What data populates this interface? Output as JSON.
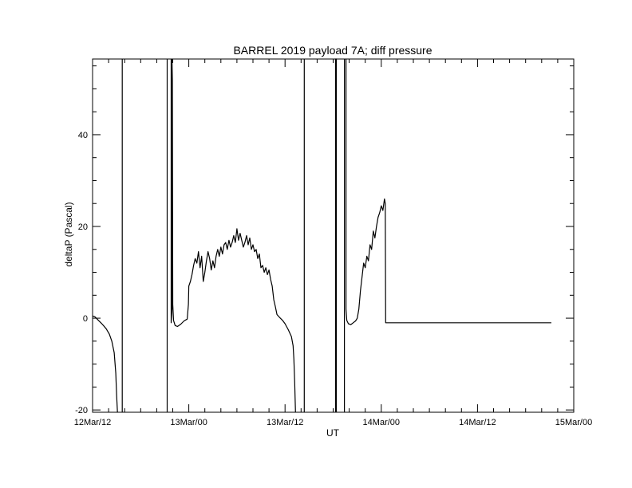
{
  "chart_data": {
    "type": "line",
    "title": "BARREL 2019 payload 7A; diff pressure",
    "xlabel": "UT",
    "ylabel": "deltaP (Pascal)",
    "x_unit": "hours since 12Mar/12 UT",
    "xlim": [
      0,
      60
    ],
    "ylim": [
      -20.5,
      56.5
    ],
    "x_tick_values": [
      0,
      12,
      24,
      36,
      48,
      60
    ],
    "x_tick_labels": [
      "12Mar/12",
      "13Mar/00",
      "13Mar/12",
      "14Mar/00",
      "14Mar/12",
      "15Mar/00"
    ],
    "y_tick_values": [
      -20,
      0,
      20,
      40
    ],
    "y_tick_labels": [
      "-20",
      "0",
      "20",
      "40"
    ],
    "grid": false,
    "line_color": "#000000",
    "series": [
      {
        "name": "",
        "segments": [
          [
            [
              0.0,
              0.5
            ],
            [
              0.3,
              0.3
            ],
            [
              0.7,
              -0.4
            ],
            [
              1.2,
              -1.3
            ],
            [
              1.7,
              -2.3
            ],
            [
              2.1,
              -3.5
            ],
            [
              2.4,
              -5.0
            ],
            [
              2.7,
              -7.5
            ],
            [
              2.9,
              -12.0
            ],
            [
              3.0,
              -17.0
            ],
            [
              3.1,
              -20.5
            ]
          ],
          [
            [
              3.7,
              -20.5
            ],
            [
              3.7,
              56.5
            ]
          ],
          [
            [
              9.3,
              56.5
            ],
            [
              9.3,
              -20.5
            ]
          ],
          [
            [
              9.8,
              56.5
            ],
            [
              9.8,
              -1.0
            ],
            [
              9.9,
              2.0
            ],
            [
              9.9,
              56.5
            ],
            [
              9.95,
              52.0
            ],
            [
              10.0,
              3.0
            ],
            [
              10.1,
              -0.5
            ],
            [
              10.3,
              -1.6
            ],
            [
              10.6,
              -1.8
            ],
            [
              11.0,
              -1.3
            ],
            [
              11.4,
              -0.6
            ],
            [
              11.8,
              -0.2
            ],
            [
              11.95,
              3.0
            ],
            [
              12.0,
              7.0
            ],
            [
              12.2,
              8.0
            ],
            [
              12.4,
              9.5
            ],
            [
              12.6,
              11.5
            ],
            [
              12.8,
              13.0
            ],
            [
              13.0,
              12.0
            ],
            [
              13.2,
              14.5
            ],
            [
              13.4,
              11.0
            ],
            [
              13.6,
              13.5
            ],
            [
              13.8,
              8.0
            ],
            [
              14.0,
              10.0
            ],
            [
              14.2,
              12.5
            ],
            [
              14.4,
              14.5
            ],
            [
              14.6,
              13.0
            ],
            [
              14.8,
              10.5
            ],
            [
              15.0,
              12.5
            ],
            [
              15.2,
              11.0
            ],
            [
              15.4,
              13.5
            ],
            [
              15.6,
              15.0
            ],
            [
              15.8,
              13.5
            ],
            [
              16.0,
              15.5
            ],
            [
              16.2,
              14.0
            ],
            [
              16.4,
              16.0
            ],
            [
              16.6,
              16.5
            ],
            [
              16.8,
              15.0
            ],
            [
              17.0,
              17.0
            ],
            [
              17.2,
              15.5
            ],
            [
              17.4,
              16.5
            ],
            [
              17.6,
              18.0
            ],
            [
              17.8,
              16.5
            ],
            [
              18.0,
              19.5
            ],
            [
              18.2,
              17.0
            ],
            [
              18.4,
              18.5
            ],
            [
              18.6,
              17.0
            ],
            [
              18.8,
              15.5
            ],
            [
              19.0,
              16.5
            ],
            [
              19.2,
              18.0
            ],
            [
              19.4,
              16.0
            ],
            [
              19.6,
              17.5
            ],
            [
              19.8,
              15.0
            ],
            [
              20.0,
              16.0
            ],
            [
              20.2,
              14.5
            ],
            [
              20.4,
              15.0
            ],
            [
              20.6,
              13.0
            ],
            [
              20.8,
              14.0
            ],
            [
              21.0,
              11.0
            ],
            [
              21.2,
              11.5
            ],
            [
              21.4,
              10.0
            ],
            [
              21.6,
              11.0
            ],
            [
              21.8,
              9.5
            ],
            [
              22.0,
              10.5
            ],
            [
              22.2,
              8.5
            ],
            [
              22.4,
              7.0
            ],
            [
              22.6,
              4.0
            ],
            [
              22.8,
              2.5
            ],
            [
              23.0,
              0.8
            ],
            [
              23.3,
              0.2
            ],
            [
              23.7,
              -0.5
            ],
            [
              24.0,
              -1.2
            ],
            [
              24.4,
              -2.5
            ],
            [
              24.8,
              -4.0
            ],
            [
              25.0,
              -6.0
            ],
            [
              25.1,
              -9.0
            ],
            [
              25.2,
              -14.0
            ],
            [
              25.3,
              -20.5
            ]
          ],
          [
            [
              26.4,
              -20.5
            ],
            [
              26.4,
              56.5
            ]
          ],
          [
            [
              30.3,
              -20.5
            ],
            [
              30.3,
              56.5
            ],
            [
              30.4,
              56.5
            ],
            [
              30.4,
              -20.5
            ]
          ],
          [
            [
              31.4,
              56.5
            ],
            [
              31.4,
              -20.5
            ]
          ],
          [
            [
              31.6,
              56.5
            ],
            [
              31.6,
              2.0
            ],
            [
              31.7,
              -0.5
            ],
            [
              31.9,
              -1.2
            ],
            [
              32.2,
              -1.4
            ],
            [
              32.5,
              -1.0
            ],
            [
              32.8,
              -0.6
            ],
            [
              33.0,
              0.0
            ],
            [
              33.2,
              2.0
            ],
            [
              33.4,
              6.0
            ],
            [
              33.6,
              9.0
            ],
            [
              33.8,
              12.0
            ],
            [
              34.0,
              11.0
            ],
            [
              34.2,
              13.5
            ],
            [
              34.4,
              12.5
            ],
            [
              34.6,
              16.0
            ],
            [
              34.8,
              15.0
            ],
            [
              35.0,
              19.0
            ],
            [
              35.2,
              17.5
            ],
            [
              35.4,
              20.0
            ],
            [
              35.6,
              22.0
            ],
            [
              35.8,
              23.0
            ],
            [
              36.0,
              24.5
            ],
            [
              36.2,
              23.5
            ],
            [
              36.4,
              26.0
            ],
            [
              36.5,
              25.0
            ],
            [
              36.55,
              -1.0
            ],
            [
              57.2,
              -1.0
            ]
          ]
        ]
      }
    ]
  }
}
